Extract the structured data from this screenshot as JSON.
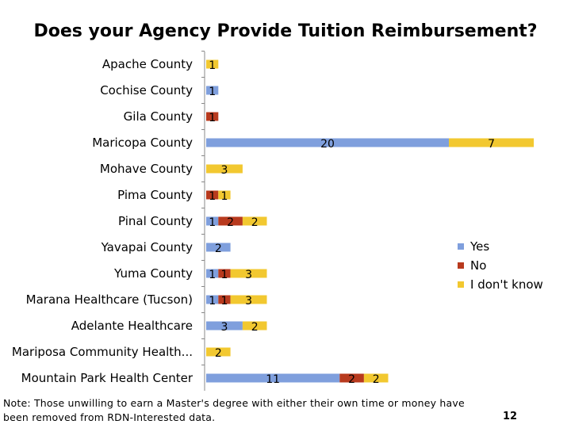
{
  "chart_data": {
    "type": "bar",
    "stacked": true,
    "orientation": "horizontal",
    "title": "Does your Agency Provide Tuition Reimbursement?",
    "categories": [
      "Apache County",
      "Cochise County",
      "Gila County",
      "Maricopa County",
      "Mohave County",
      "Pima County",
      "Pinal County",
      "Yavapai County",
      "Yuma County",
      "Marana Healthcare (Tucson)",
      "Adelante Healthcare",
      "Mariposa Community Health...",
      "Mountain Park Health Center"
    ],
    "series": [
      {
        "name": "Yes",
        "color": "#7F9FDD",
        "values": [
          0,
          1,
          0,
          20,
          0,
          0,
          1,
          2,
          1,
          1,
          3,
          0,
          11
        ]
      },
      {
        "name": "No",
        "color": "#B83A1E",
        "values": [
          0,
          0,
          1,
          0,
          0,
          1,
          2,
          0,
          1,
          1,
          0,
          0,
          2
        ]
      },
      {
        "name": "I don't know",
        "color": "#F2C830",
        "values": [
          1,
          0,
          0,
          7,
          3,
          1,
          2,
          0,
          3,
          3,
          2,
          2,
          2
        ]
      }
    ],
    "legend_position": "right",
    "grid": false
  },
  "footer": {
    "note": "Note: Those unwilling to earn a Master's degree with either their own time or money have been removed from RDN-Interested data.",
    "page_number": "12"
  }
}
